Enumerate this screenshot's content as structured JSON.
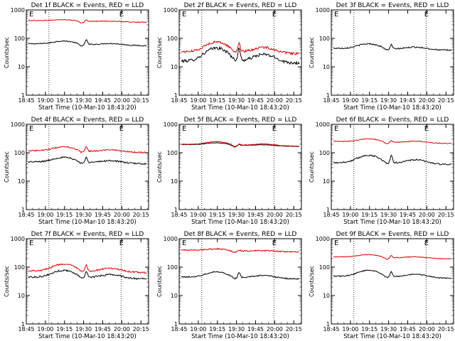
{
  "colors": {
    "events": "#000000",
    "lld": "#e00000",
    "axis": "#000000",
    "background": "#ffffff"
  },
  "x_ticks": [
    "18:45",
    "19:00",
    "19:15",
    "19:30",
    "19:45",
    "20:00",
    "20:15"
  ],
  "y_ticks": [
    "1",
    "10",
    "100",
    "1000"
  ],
  "xlabel": "Start Time (10-Mar-10 18:43:20)",
  "ylabel": "Counts/sec",
  "chart_data": [
    {
      "type": "line",
      "title": "Det 1f BLACK = Events, RED = LLD",
      "markers": [
        "E",
        "E"
      ],
      "y_scale": "log",
      "ylim": [
        1,
        1000
      ],
      "series": [
        {
          "color": "black",
          "level": 65,
          "hump": 1.3,
          "spike": 1.5,
          "noise": 0.04
        },
        {
          "color": "red",
          "level": 430,
          "hump": 1.1,
          "spike": 1.15,
          "noise": 0.03
        }
      ]
    },
    {
      "type": "line",
      "title": "Det 2f BLACK = Events, RED = LLD",
      "markers": [
        "E",
        "E"
      ],
      "y_scale": "log",
      "ylim": [
        1,
        1000
      ],
      "series": [
        {
          "color": "black",
          "level": 16,
          "hump": 3.0,
          "spike": 2.5,
          "noise": 0.12
        },
        {
          "color": "red",
          "level": 34,
          "hump": 2.3,
          "spike": 2.0,
          "noise": 0.09
        }
      ]
    },
    {
      "type": "line",
      "title": "Det 3f BLACK = Events, RED = LLD",
      "markers": [
        "E",
        "E"
      ],
      "y_scale": "log",
      "ylim": [
        1,
        1000
      ],
      "series": [
        {
          "color": "black",
          "level": 45,
          "hump": 1.5,
          "spike": 1.4,
          "noise": 0.05
        }
      ]
    },
    {
      "type": "line",
      "title": "Det 4f BLACK = Events, RED = LLD",
      "markers": [
        "E",
        "E"
      ],
      "y_scale": "log",
      "ylim": [
        1,
        1000
      ],
      "series": [
        {
          "color": "black",
          "level": 48,
          "hump": 1.5,
          "spike": 1.6,
          "noise": 0.06
        },
        {
          "color": "red",
          "level": 120,
          "hump": 1.4,
          "spike": 1.5,
          "noise": 0.05
        }
      ]
    },
    {
      "type": "line",
      "title": "Det 5f BLACK = Events, RED = LLD",
      "markers": [
        "E",
        "E"
      ],
      "y_scale": "log",
      "ylim": [
        1,
        1000
      ],
      "series": [
        {
          "color": "black",
          "level": 195,
          "hump": 1.2,
          "spike": 1.1,
          "noise": 0.02
        },
        {
          "color": "red",
          "level": 200,
          "hump": 1.3,
          "spike": 1.1,
          "noise": 0.02
        }
      ]
    },
    {
      "type": "line",
      "title": "Det 6f BLACK = Events, RED = LLD",
      "markers": [
        "E",
        "E"
      ],
      "y_scale": "log",
      "ylim": [
        1,
        1000
      ],
      "series": [
        {
          "color": "black",
          "level": 45,
          "hump": 1.9,
          "spike": 1.8,
          "noise": 0.06
        },
        {
          "color": "red",
          "level": 250,
          "hump": 1.3,
          "spike": 1.15,
          "noise": 0.03
        }
      ]
    },
    {
      "type": "line",
      "title": "Det 7f BLACK = Events, RED = LLD",
      "markers": [
        "E",
        "E"
      ],
      "y_scale": "log",
      "ylim": [
        1,
        1000
      ],
      "series": [
        {
          "color": "black",
          "level": 45,
          "hump": 1.8,
          "spike": 1.7,
          "noise": 0.07
        },
        {
          "color": "red",
          "level": 75,
          "hump": 1.8,
          "spike": 1.6,
          "noise": 0.06
        }
      ]
    },
    {
      "type": "line",
      "title": "Det 8f BLACK = Events, RED = LLD",
      "markers": [
        "E",
        "E"
      ],
      "y_scale": "log",
      "ylim": [
        1,
        1000
      ],
      "series": [
        {
          "color": "black",
          "level": 45,
          "hump": 1.6,
          "spike": 1.5,
          "noise": 0.05
        },
        {
          "color": "red",
          "level": 400,
          "hump": 1.15,
          "spike": 1.1,
          "noise": 0.05
        }
      ]
    },
    {
      "type": "line",
      "title": "Det 9f BLACK = Events, RED = LLD",
      "markers": [
        "E",
        "E"
      ],
      "y_scale": "log",
      "ylim": [
        1,
        1000
      ],
      "series": [
        {
          "color": "black",
          "level": 48,
          "hump": 1.7,
          "spike": 1.5,
          "noise": 0.04
        },
        {
          "color": "red",
          "level": 230,
          "hump": 1.25,
          "spike": 1.2,
          "noise": 0.03
        }
      ]
    }
  ]
}
